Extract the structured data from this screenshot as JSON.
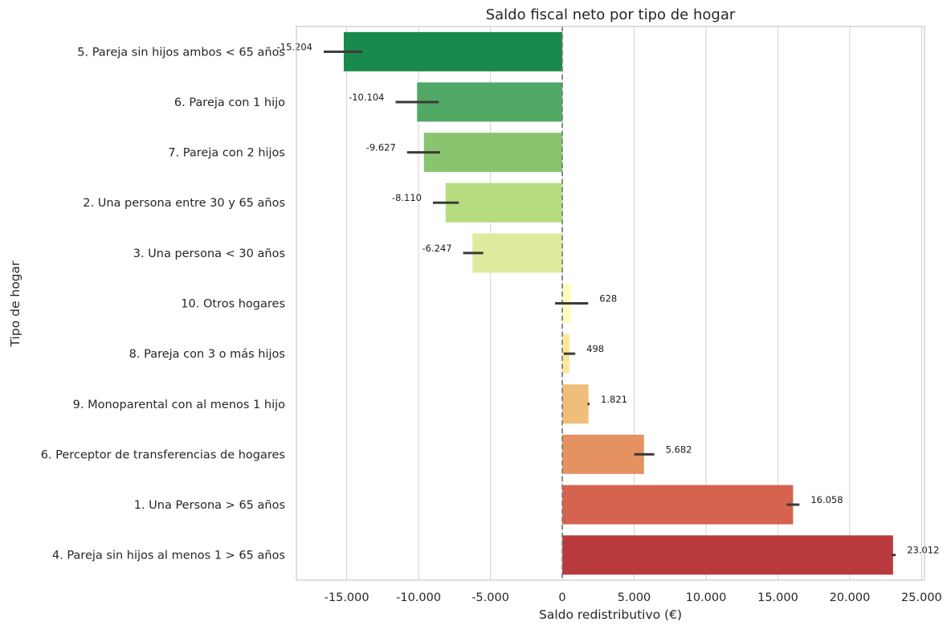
{
  "chart_data": {
    "type": "bar",
    "orientation": "horizontal",
    "title": "Saldo fiscal neto por tipo de hogar",
    "xlabel": "Saldo redistributivo (€)",
    "ylabel": "Tipo de hogar",
    "xlim": [
      -18500,
      25200
    ],
    "xticks": [
      -15000,
      -10000,
      -5000,
      0,
      5000,
      10000,
      15000,
      20000,
      25000
    ],
    "xtick_labels": [
      "-15.000",
      "-10.000",
      "-5.000",
      "0",
      "5.000",
      "10.000",
      "15.000",
      "20.000",
      "25.000"
    ],
    "grid": "vertical",
    "reference_line": {
      "x": 0,
      "style": "dashed",
      "color": "#808080"
    },
    "bars": [
      {
        "category": "5. Pareja sin hijos ambos < 65 años",
        "value": -15204,
        "label": "-15.204",
        "ci": [
          -16600,
          -13900
        ],
        "color": "#1a8a4c"
      },
      {
        "category": "6. Pareja con 1 hijo",
        "value": -10104,
        "label": "-10.104",
        "ci": [
          -11600,
          -8600
        ],
        "color": "#52a966"
      },
      {
        "category": "7. Pareja con 2 hijos",
        "value": -9627,
        "label": "-9.627",
        "ci": [
          -10800,
          -8500
        ],
        "color": "#89c56f"
      },
      {
        "category": "2. Una persona entre 30 y 65 años",
        "value": -8110,
        "label": "-8.110",
        "ci": [
          -9000,
          -7200
        ],
        "color": "#b5dc7f"
      },
      {
        "category": "3. Una persona < 30 años",
        "value": -6247,
        "label": "-6.247",
        "ci": [
          -6900,
          -5500
        ],
        "color": "#dceb9d"
      },
      {
        "category": "10. Otros hogares",
        "value": 628,
        "label": "628",
        "ci": [
          -500,
          1800
        ],
        "color": "#fefcbf"
      },
      {
        "category": "8. Pareja con 3 o más hijos",
        "value": 498,
        "label": "498",
        "ci": [
          100,
          900
        ],
        "color": "#fee79a"
      },
      {
        "category": "9. Monoparental con al menos 1 hijo",
        "value": 1821,
        "label": "1.821",
        "ci": [
          1750,
          1900
        ],
        "color": "#f1bd7b"
      },
      {
        "category": "6. Perceptor de transferencias de hogares",
        "value": 5682,
        "label": "5.682",
        "ci": [
          5000,
          6400
        ],
        "color": "#e59160"
      },
      {
        "category": "1. Una Persona > 65 años",
        "value": 16058,
        "label": "16.058",
        "ci": [
          15600,
          16500
        ],
        "color": "#d5634d"
      },
      {
        "category": "4. Pareja sin hijos al menos 1 > 65 años",
        "value": 23012,
        "label": "23.012",
        "ci": [
          22900,
          23200
        ],
        "color": "#b93a3d"
      }
    ]
  }
}
